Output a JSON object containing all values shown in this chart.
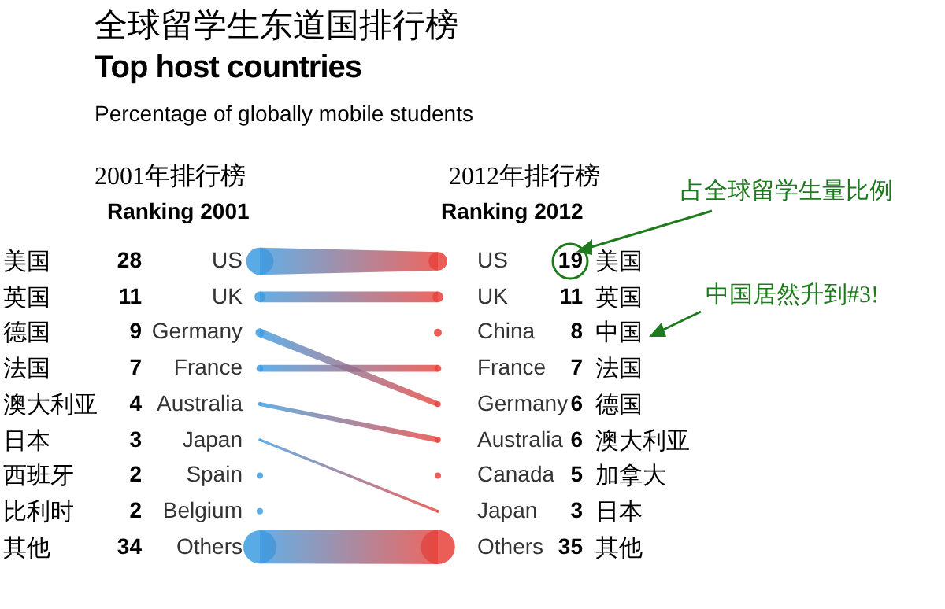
{
  "chart_data": [
    {
      "type": "other",
      "title": "全球留学生东道国排行榜",
      "subtitle": "Top host countries",
      "annotations": [
        "Percentage of globally mobile students"
      ]
    },
    {
      "type": "other",
      "title": "2001年排行榜",
      "subtitle": "Ranking 2001",
      "color": "#3d9be0",
      "data_labels": true,
      "categories": [
        "US",
        "UK",
        "Germany",
        "France",
        "Australia",
        "Japan",
        "Spain",
        "Belgium",
        "Others"
      ],
      "y2_categories": [
        "美国",
        "英国",
        "德国",
        "法国",
        "澳大利亚",
        "日本",
        "西班牙",
        "比利时",
        "其他"
      ],
      "values": [
        28,
        11,
        9,
        7,
        4,
        3,
        2,
        2,
        34
      ]
    },
    {
      "type": "other",
      "title": "2012年排行榜",
      "subtitle": "Ranking 2012",
      "color": "#e8423a",
      "data_labels": true,
      "categories": [
        "US",
        "UK",
        "China",
        "France",
        "Germany",
        "Australia",
        "Canada",
        "Japan",
        "Others"
      ],
      "y2_categories": [
        "美国",
        "英国",
        "中国",
        "法国",
        "德国",
        "澳大利亚",
        "加拿大",
        "日本",
        "其他"
      ],
      "values": [
        19,
        11,
        8,
        7,
        6,
        6,
        5,
        3,
        35
      ],
      "annotations": [
        "占全球留学生量比例",
        "中国居然升到#3!"
      ]
    }
  ]
}
